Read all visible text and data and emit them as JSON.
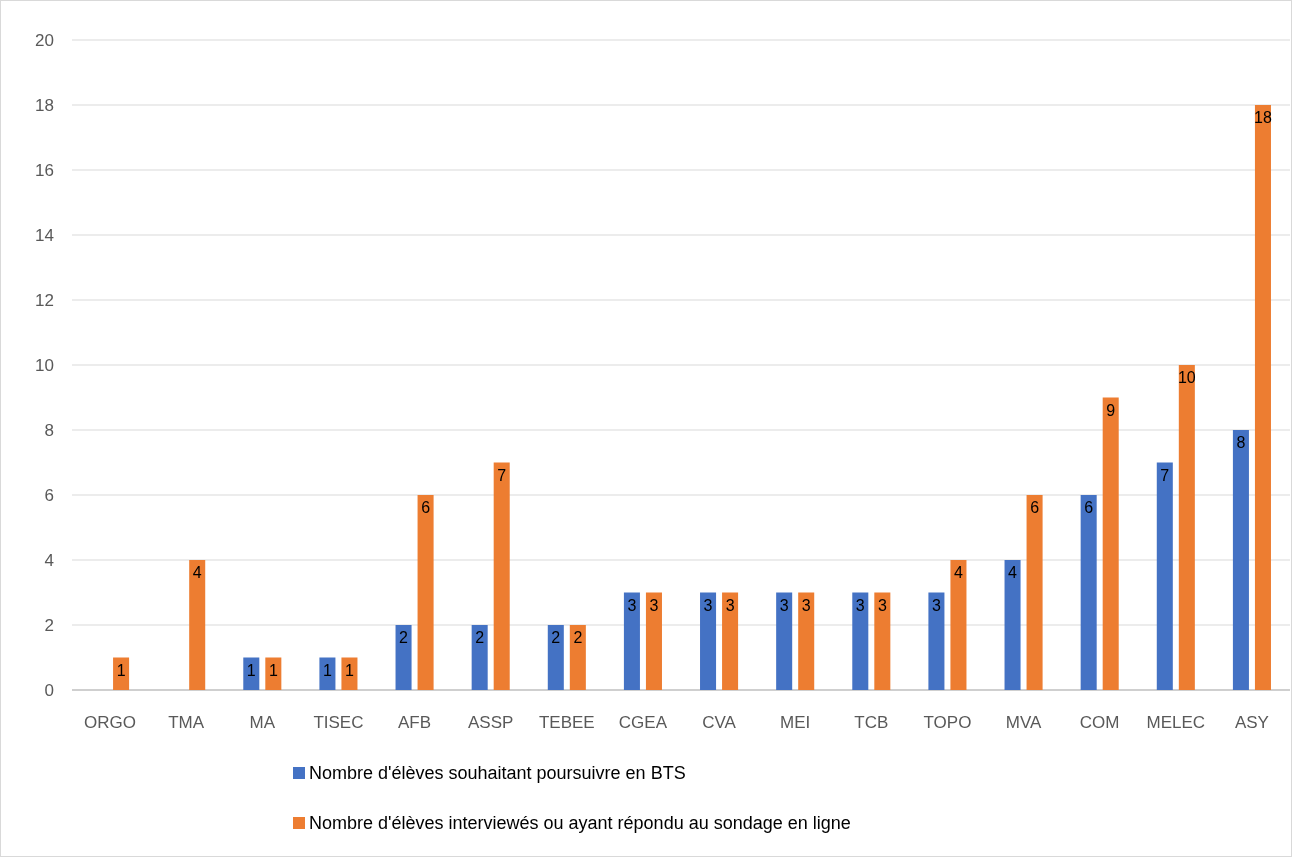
{
  "chart_data": {
    "type": "bar",
    "categories": [
      "ORGO",
      "TMA",
      "MA",
      "TISEC",
      "AFB",
      "ASSP",
      "TEBEE",
      "CGEA",
      "CVA",
      "MEI",
      "TCB",
      "TOPO",
      "MVA",
      "COM",
      "MELEC",
      "ASY"
    ],
    "series": [
      {
        "name": "Nombre d'élèves souhaitant poursuivre en BTS",
        "color": "#4472c4",
        "values": [
          0,
          0,
          1,
          1,
          2,
          2,
          2,
          3,
          3,
          3,
          3,
          3,
          4,
          6,
          7,
          8
        ],
        "value_labels": [
          null,
          null,
          "1",
          "1",
          "2",
          "2",
          "2",
          "3",
          "3",
          "3",
          "3",
          "3",
          "4",
          "6",
          "7",
          "8"
        ]
      },
      {
        "name": "Nombre d'élèves interviewés ou ayant répondu au sondage en ligne",
        "color": "#ed7d31",
        "values": [
          1,
          4,
          1,
          1,
          6,
          7,
          2,
          3,
          3,
          3,
          3,
          4,
          6,
          9,
          10,
          18
        ],
        "value_labels": [
          "1",
          "4",
          "1",
          "1",
          "6",
          "7",
          "2",
          "3",
          "3",
          "3",
          "3",
          "4",
          "6",
          "9",
          "10",
          "18"
        ]
      }
    ],
    "ylim": [
      0,
      20
    ],
    "yticks": [
      0,
      2,
      4,
      6,
      8,
      10,
      12,
      14,
      16,
      18,
      20
    ],
    "grid": "y",
    "legend": "bottom"
  }
}
